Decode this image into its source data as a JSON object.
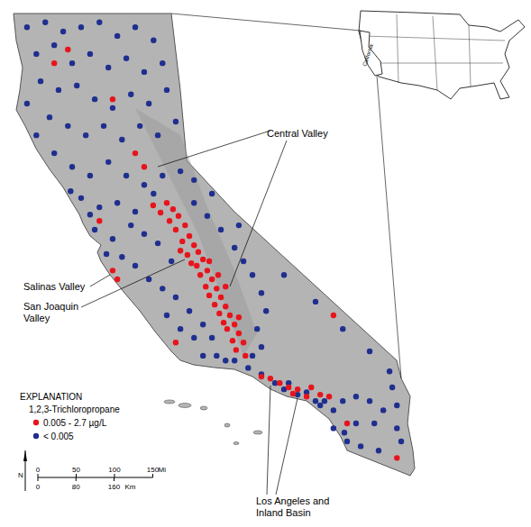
{
  "chart_data": {
    "type": "scatter",
    "tick_labels": false,
    "grid": false,
    "xlim": [
      -124.73,
      -111.14
    ],
    "ylim": [
      31.47,
      42.26
    ],
    "legend_title": "EXPLANATION",
    "legend_subtitle": "1,2,3-Trichloropropane",
    "annotations": [
      [
        "Central Valley"
      ],
      [
        "Salinas Valley"
      ],
      [
        "San Joaquin",
        "Valley"
      ],
      [
        "Los Angeles and",
        "Inland Basin"
      ]
    ],
    "inset_label": "California",
    "north_label": "N",
    "scale_bar": {
      "miles": [
        0,
        50,
        100,
        150
      ],
      "miles_unit": "Mi",
      "km": [
        0,
        80,
        160
      ],
      "km_unit": "Km"
    },
    "series": [
      {
        "name": "< 0.005",
        "color": "#1f2f8f",
        "marker": "circle",
        "x": [
          -124.06,
          -123.59,
          -123.13,
          -122.67,
          -122.2,
          -121.74,
          -121.28,
          -120.81,
          -123.82,
          -123.36,
          -122.9,
          -122.44,
          -121.97,
          -121.51,
          -121.05,
          -120.58,
          -123.71,
          -123.25,
          -122.78,
          -122.32,
          -121.86,
          -121.39,
          -120.93,
          -120.47,
          -124.06,
          -123.48,
          -123.01,
          -122.55,
          -122.09,
          -121.62,
          -121.16,
          -120.7,
          -120.24,
          -123.82,
          -123.36,
          -122.9,
          -122.44,
          -121.97,
          -121.51,
          -121.05,
          -120.58,
          -120.12,
          -122.94,
          -122.67,
          -122.2,
          -121.74,
          -121.28,
          -120.81,
          -122.44,
          -122.32,
          -121.86,
          -121.39,
          -121.05,
          -120.7,
          -120.35,
          -122.02,
          -121.62,
          -121.28,
          -120.93,
          -120.58,
          -120.24,
          -119.89,
          -119.54,
          -119.31,
          -119.77,
          -120.12,
          -120.47,
          -119.19,
          -118.96,
          -119.54,
          -119.77,
          -119.43,
          -119.08,
          -118.73,
          -118.5,
          -118.27,
          -118.04,
          -117.92,
          -118.15,
          -118.04,
          -118.27,
          -118.62,
          -117.46,
          -116.65,
          -115.95,
          -115.26,
          -114.75,
          -119.77,
          -119.31,
          -118.73,
          -118.38,
          -118.04,
          -117.69,
          -117.46,
          -117.11,
          -116.65,
          -116.53,
          -116.19,
          -115.95,
          -115.61,
          -115.26,
          -114.91,
          -114.56,
          -114.56,
          -114.45,
          -115.03,
          -115.49,
          -115.84,
          -116.19,
          -115.91,
          -117.34,
          -116.88,
          -116.42,
          -115.61,
          -115.14,
          -114.68
        ],
        "y": [
          41.72,
          41.82,
          41.63,
          41.72,
          41.82,
          41.54,
          41.72,
          41.45,
          41.17,
          41.35,
          40.98,
          41.17,
          40.89,
          41.08,
          40.8,
          40.98,
          40.61,
          40.43,
          40.52,
          40.24,
          40.06,
          40.34,
          40.15,
          40.43,
          40.15,
          39.87,
          39.69,
          39.5,
          39.69,
          39.41,
          39.69,
          39.5,
          39.78,
          39.5,
          39.13,
          38.85,
          38.67,
          38.95,
          38.67,
          38.48,
          38.67,
          38.76,
          38.35,
          38.21,
          38.02,
          38.11,
          37.93,
          38.3,
          37.87,
          37.56,
          37.37,
          37.65,
          37.47,
          37.28,
          36.91,
          37.06,
          37.0,
          36.82,
          36.54,
          36.35,
          36.17,
          35.89,
          35.61,
          35.34,
          35.34,
          35.52,
          35.8,
          34.97,
          34.87,
          34.97,
          38.11,
          37.84,
          37.56,
          37.19,
          36.91,
          36.63,
          36.26,
          35.89,
          35.52,
          35.15,
          34.97,
          37.65,
          36.63,
          36.08,
          35.52,
          35.06,
          34.65,
          38.58,
          38.3,
          34.87,
          34.72,
          34.59,
          34.41,
          34.28,
          34.17,
          34.04,
          33.95,
          33.85,
          34.04,
          34.13,
          34.04,
          33.85,
          33.95,
          33.48,
          33.21,
          33.02,
          33.11,
          33.21,
          33.48,
          33.39,
          34.41,
          34.22,
          34.04,
          33.58,
          33.58,
          34.32
        ]
      },
      {
        "name": "0.005 - 2.7 µg/L",
        "color": "#e8141c",
        "marker": "circle",
        "x": [
          -120.47,
          -120.31,
          -120.17,
          -120.4,
          -120.0,
          -120.24,
          -119.89,
          -120.07,
          -119.77,
          -119.66,
          -119.94,
          -119.54,
          -119.7,
          -119.43,
          -119.61,
          -119.31,
          -119.47,
          -119.19,
          -119.38,
          -119.08,
          -119.24,
          -118.96,
          -119.12,
          -118.85,
          -119.01,
          -118.73,
          -118.92,
          -118.62,
          -118.78,
          -118.5,
          -118.69,
          -118.45,
          -119.15,
          -119.84,
          -120.12,
          -120.63,
          -120.82,
          -118.96,
          -119.38,
          -118.62,
          -121.28,
          -121.05,
          -121.86,
          -123.01,
          -123.36,
          -122.2,
          -121.86,
          -121.74,
          -117.81,
          -117.57,
          -117.34,
          -117.11,
          -116.76,
          -116.53,
          -116.3,
          -116.88,
          -117.23,
          -118.04,
          -115.84,
          -116.19,
          -114.56,
          -120.24
        ],
        "y": [
          38.11,
          37.98,
          37.84,
          37.74,
          37.65,
          37.56,
          37.43,
          37.32,
          37.24,
          37.1,
          37.04,
          36.95,
          36.82,
          36.72,
          36.63,
          36.54,
          36.39,
          36.35,
          36.21,
          36.17,
          36.02,
          35.98,
          35.84,
          35.8,
          35.65,
          35.61,
          35.52,
          35.43,
          35.28,
          35.24,
          35.09,
          34.97,
          36.63,
          36.87,
          37.13,
          37.91,
          38.06,
          36.39,
          36.91,
          35.76,
          39.13,
          38.85,
          40.24,
          41.26,
          40.98,
          37.74,
          36.72,
          36.54,
          34.5,
          34.41,
          34.32,
          34.28,
          34.32,
          34.17,
          34.13,
          34.13,
          34.19,
          34.54,
          33.58,
          35.8,
          32.87,
          35.24
        ]
      }
    ]
  }
}
